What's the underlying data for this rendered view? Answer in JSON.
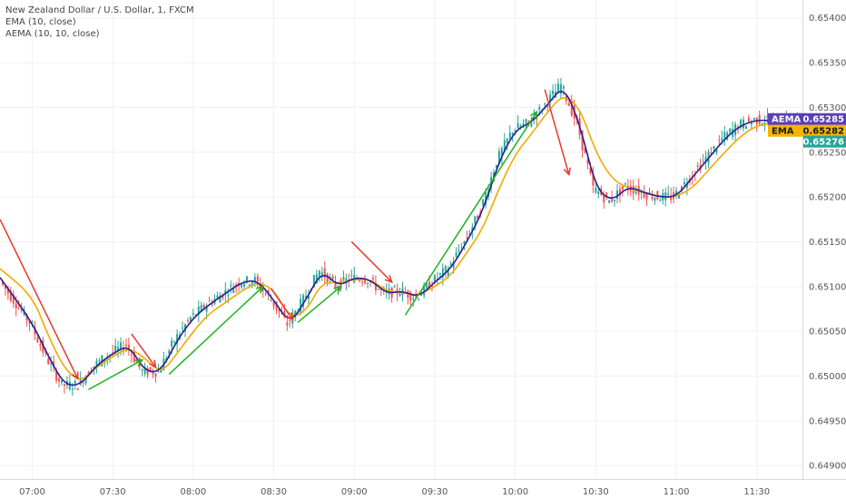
{
  "legend": {
    "title": "New Zealand Dollar / U.S. Dollar, 1, FXCM",
    "ema": "EMA (10, close)",
    "aema": "AEMA (10, 10, close)"
  },
  "colors": {
    "up": "#26a69a",
    "down": "#ef5350",
    "ema": "#f2a900",
    "aema": "#2b1f8f",
    "arrow_up": "#1db31d",
    "arrow_down": "#e8382d",
    "grid": "#eef0f3",
    "axis_text": "#555555"
  },
  "badges": {
    "aema": {
      "label": "AEMA",
      "value": "0.65285",
      "bg": "#5b3fb8"
    },
    "ema": {
      "label": "EMA",
      "value": "0.65282",
      "bg": "#f5b400"
    },
    "price": {
      "value": "0.65276",
      "bg": "#26a69a"
    }
  },
  "chart_data": {
    "type": "line",
    "title": "New Zealand Dollar / U.S. Dollar, 1, FXCM",
    "xlabel": "",
    "ylabel": "",
    "x_ticks": [
      "07:00",
      "07:30",
      "08:00",
      "08:30",
      "09:00",
      "09:30",
      "10:00",
      "10:30",
      "11:00",
      "11:30"
    ],
    "y_ticks": [
      "0.65400",
      "0.65350",
      "0.65300",
      "0.65250",
      "0.65200",
      "0.65150",
      "0.65100",
      "0.65050",
      "0.65000",
      "0.64950",
      "0.64900"
    ],
    "ylim": [
      0.64885,
      0.6542
    ],
    "x_range_minutes": [
      -12,
      287
    ],
    "series": [
      {
        "name": "EMA (10, close)",
        "x": [
          -12,
          0,
          6,
          12,
          18,
          24,
          30,
          36,
          42,
          48,
          54,
          60,
          66,
          72,
          78,
          84,
          90,
          96,
          102,
          108,
          114,
          120,
          126,
          132,
          138,
          144,
          150,
          156,
          162,
          168,
          174,
          180,
          186,
          192,
          198,
          204,
          210,
          216,
          222,
          228,
          234,
          240,
          246,
          252,
          258,
          264,
          270,
          276,
          282,
          287
        ],
        "values": [
          0.6512,
          0.6509,
          0.65045,
          0.65008,
          0.64993,
          0.6501,
          0.65022,
          0.65032,
          0.6502,
          0.65003,
          0.65025,
          0.6505,
          0.6507,
          0.65082,
          0.65095,
          0.65105,
          0.65097,
          0.65065,
          0.65072,
          0.65105,
          0.65104,
          0.65108,
          0.65108,
          0.65095,
          0.65093,
          0.6509,
          0.651,
          0.65112,
          0.65138,
          0.65165,
          0.6521,
          0.65248,
          0.6527,
          0.65295,
          0.65315,
          0.653,
          0.6525,
          0.6522,
          0.6521,
          0.65205,
          0.652,
          0.652,
          0.6521,
          0.6523,
          0.6525,
          0.65268,
          0.6528,
          0.65282,
          0.65282,
          0.65282
        ]
      },
      {
        "name": "AEMA (10, 10, close)",
        "x": [
          -12,
          0,
          6,
          12,
          18,
          24,
          30,
          36,
          42,
          48,
          54,
          60,
          66,
          72,
          78,
          84,
          90,
          96,
          102,
          108,
          114,
          120,
          126,
          132,
          138,
          144,
          150,
          156,
          162,
          168,
          174,
          180,
          186,
          192,
          198,
          204,
          210,
          216,
          222,
          228,
          234,
          240,
          246,
          252,
          258,
          264,
          270,
          276,
          282,
          287
        ],
        "values": [
          0.6511,
          0.6506,
          0.65022,
          0.6499,
          0.6499,
          0.65012,
          0.65025,
          0.65035,
          0.65005,
          0.65005,
          0.6504,
          0.65065,
          0.6508,
          0.65092,
          0.65105,
          0.65107,
          0.65085,
          0.65058,
          0.65085,
          0.65118,
          0.651,
          0.6511,
          0.65108,
          0.65092,
          0.65095,
          0.65088,
          0.65105,
          0.6512,
          0.6515,
          0.65185,
          0.6524,
          0.65275,
          0.65283,
          0.65303,
          0.65325,
          0.65282,
          0.6521,
          0.65195,
          0.65212,
          0.65205,
          0.652,
          0.652,
          0.65222,
          0.65243,
          0.65265,
          0.6528,
          0.65286,
          0.65285,
          0.65285,
          0.65285
        ]
      }
    ],
    "arrows": [
      {
        "dir": "down",
        "from": [
          -12,
          0.65175
        ],
        "to": [
          17,
          0.64997
        ]
      },
      {
        "dir": "up",
        "from": [
          21,
          0.64985
        ],
        "to": [
          41,
          0.65018
        ]
      },
      {
        "dir": "down",
        "from": [
          37,
          0.65047
        ],
        "to": [
          46,
          0.6501
        ]
      },
      {
        "dir": "up",
        "from": [
          51,
          0.65002
        ],
        "to": [
          86,
          0.651
        ]
      },
      {
        "dir": "down",
        "from": [
          89,
          0.65098
        ],
        "to": [
          97,
          0.65063
        ]
      },
      {
        "dir": "up",
        "from": [
          99,
          0.6506
        ],
        "to": [
          115,
          0.651
        ]
      },
      {
        "dir": "down",
        "from": [
          119,
          0.6515
        ],
        "to": [
          134,
          0.65105
        ]
      },
      {
        "dir": "up",
        "from": [
          139,
          0.65068
        ],
        "to": [
          188,
          0.65295
        ]
      },
      {
        "dir": "down",
        "from": [
          191,
          0.6532
        ],
        "to": [
          200,
          0.65225
        ]
      }
    ]
  }
}
